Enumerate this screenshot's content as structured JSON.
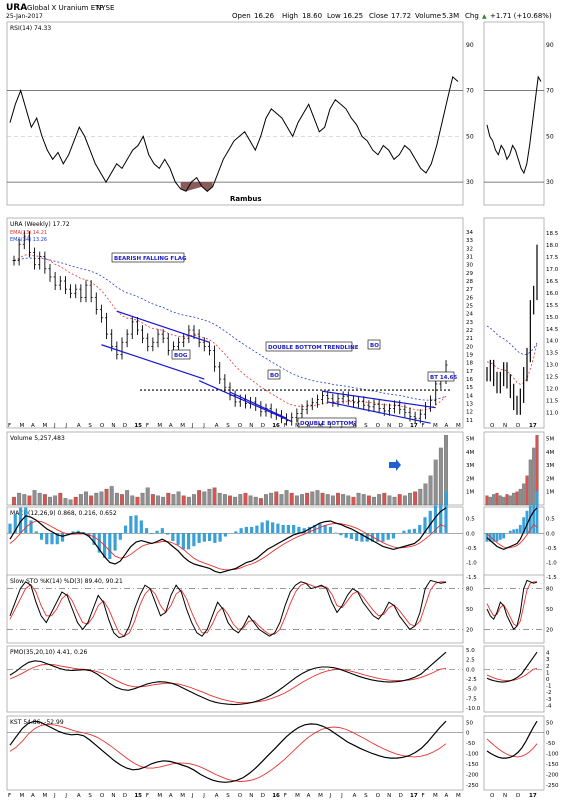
{
  "header": {
    "symbol": "URA",
    "name": "Global X Uranium ETF",
    "exchange": "NYSE",
    "date": "25-Jan-2017",
    "open_label": "Open",
    "open": "16.26",
    "high_label": "High",
    "high": "18.60",
    "low_label": "Low",
    "low": "16.25",
    "close_label": "Close",
    "close": "17.72",
    "volume_label": "Volume",
    "volume": "5.3M",
    "chg_label": "Chg",
    "chg": "+1.71 (+10.68%)",
    "chg_arrow": "▲"
  },
  "colors": {
    "price_bars": "#000000",
    "ema13": "#e8322e",
    "ema34": "#1f3fd0",
    "trendline": "#1515d8",
    "rsi_fill": "#8b5a5a",
    "vol_up": "#8f8f8f",
    "vol_down": "#d9534f",
    "macd_hist": "#3aa0d8",
    "signal": "#e8322e",
    "grid": "#b8b8b8"
  },
  "chart_data": [
    {
      "type": "line",
      "panel": "rsi",
      "title": "RSI(14) 74.33",
      "indicator": "RSI(14)",
      "last_value": 74.33,
      "watermark": "Rambus",
      "y_ticks": [
        30,
        50,
        70,
        90
      ],
      "ylim": [
        20,
        100
      ],
      "reference_lines": [
        30,
        70
      ],
      "series": [
        {
          "name": "RSI(14)",
          "values": [
            56,
            64,
            70,
            62,
            54,
            58,
            50,
            44,
            40,
            43,
            38,
            42,
            48,
            54,
            50,
            44,
            38,
            34,
            30,
            34,
            38,
            36,
            40,
            44,
            46,
            50,
            42,
            38,
            36,
            40,
            36,
            30,
            27,
            26,
            30,
            32,
            28,
            26,
            28,
            34,
            40,
            44,
            48,
            50,
            52,
            48,
            44,
            50,
            58,
            62,
            60,
            58,
            54,
            50,
            56,
            60,
            64,
            58,
            52,
            54,
            62,
            66,
            64,
            62,
            58,
            55,
            50,
            48,
            44,
            42,
            46,
            44,
            40,
            42,
            46,
            44,
            40,
            36,
            34,
            38,
            46,
            56,
            66,
            76,
            74
          ]
        }
      ]
    },
    {
      "type": "candlestick",
      "panel": "price",
      "title": "URA (Weekly) 17.72",
      "y_ticks": [
        11,
        12,
        13,
        14,
        15,
        16,
        17,
        18,
        19,
        20,
        21,
        22,
        23,
        24,
        25,
        26,
        27,
        28,
        29,
        30,
        31,
        32,
        33,
        34
      ],
      "ylim": [
        10.5,
        34
      ],
      "x_ticks": [
        "F",
        "M",
        "A",
        "M",
        "J",
        "J",
        "A",
        "S",
        "O",
        "N",
        "D",
        "15",
        "F",
        "M",
        "A",
        "M",
        "J",
        "J",
        "A",
        "S",
        "O",
        "N",
        "D",
        "16",
        "F",
        "M",
        "A",
        "M",
        "J",
        "J",
        "A",
        "S",
        "O",
        "N",
        "D",
        "17",
        "F",
        "M",
        "A",
        "M"
      ],
      "close": [
        30.5,
        32.5,
        33.5,
        31.5,
        30,
        31,
        29.5,
        28.5,
        27.5,
        28,
        27,
        26.5,
        27,
        26,
        27.5,
        26,
        24.5,
        23.5,
        21.5,
        20,
        19,
        20.5,
        21.5,
        23,
        22,
        21,
        20,
        20.5,
        21.5,
        21,
        19.5,
        20,
        20.5,
        21,
        22,
        21.5,
        20.5,
        20,
        19.5,
        17.5,
        16,
        15,
        14,
        13.2,
        13.5,
        13,
        13.2,
        12.7,
        12,
        12.4,
        11.8,
        11.6,
        11.2,
        10.9,
        11.3,
        11.8,
        12.3,
        12.8,
        13.1,
        13.5,
        14,
        13.6,
        13.2,
        13.6,
        13.9,
        13.4,
        13.1,
        13.3,
        12.8,
        12.6,
        12.9,
        12.4,
        12.1,
        12.4,
        12.8,
        12.3,
        11.9,
        11.4,
        11.2,
        11.7,
        12.6,
        13.4,
        15.4,
        16.0,
        17.72
      ],
      "series": [
        {
          "name": "EMA(13) 14.21",
          "last_value": 14.21
        },
        {
          "name": "EMA(34) 13.26",
          "last_value": 13.26
        }
      ],
      "annotations": [
        "BEARISH FALLING FLAG",
        "BOG",
        "DOUBLE BOTTOM TRENDLINE",
        "BO",
        "BO",
        "BT 14.65",
        "DOUBLE BOTTOM?"
      ]
    },
    {
      "type": "bar",
      "panel": "volume",
      "title": "Volume 5,257,483",
      "y_ticks": [
        "1M",
        "2M",
        "3M",
        "4M",
        "5M"
      ],
      "ylim": [
        0,
        5.5
      ],
      "values": [
        0.6,
        0.9,
        0.8,
        0.7,
        1.1,
        0.9,
        0.8,
        0.6,
        0.7,
        0.9,
        0.5,
        0.4,
        0.6,
        0.8,
        1.0,
        0.7,
        0.9,
        1.0,
        1.2,
        1.4,
        0.9,
        0.8,
        1.1,
        0.7,
        0.6,
        0.9,
        1.3,
        0.8,
        0.7,
        0.6,
        0.9,
        0.8,
        1.0,
        0.7,
        0.6,
        0.8,
        1.1,
        1.0,
        1.2,
        1.3,
        0.9,
        0.8,
        0.7,
        0.6,
        0.8,
        0.9,
        0.7,
        0.6,
        0.5,
        0.8,
        0.9,
        1.0,
        0.8,
        1.1,
        0.9,
        0.7,
        0.8,
        0.9,
        1.0,
        1.1,
        0.9,
        0.8,
        0.7,
        0.9,
        0.8,
        0.7,
        0.6,
        0.9,
        0.8,
        0.7,
        0.6,
        0.8,
        0.9,
        0.7,
        0.6,
        0.8,
        0.7,
        0.9,
        1.0,
        1.2,
        1.6,
        2.2,
        3.4,
        4.3,
        5.26
      ]
    },
    {
      "type": "line",
      "panel": "macd",
      "title": "MACD(12,26,9) 0.868, 0.216, 0.652",
      "y_ticks": [
        -1.5,
        -1.0,
        -0.5,
        0.0,
        0.5
      ],
      "ylim": [
        -1.7,
        0.9
      ],
      "macd_values": [
        -0.2,
        0.1,
        0.4,
        0.6,
        0.55,
        0.45,
        0.3,
        0.15,
        0.05,
        -0.05,
        -0.1,
        -0.05,
        0.0,
        0.02,
        0.0,
        -0.1,
        -0.3,
        -0.55,
        -0.8,
        -1.0,
        -1.05,
        -0.95,
        -0.7,
        -0.45,
        -0.3,
        -0.25,
        -0.3,
        -0.35,
        -0.28,
        -0.2,
        -0.3,
        -0.45,
        -0.6,
        -0.8,
        -0.95,
        -1.05,
        -1.1,
        -1.15,
        -1.2,
        -1.3,
        -1.35,
        -1.3,
        -1.25,
        -1.2,
        -1.1,
        -1.0,
        -0.95,
        -0.85,
        -0.7,
        -0.55,
        -0.45,
        -0.35,
        -0.25,
        -0.15,
        -0.05,
        0.0,
        0.05,
        0.15,
        0.25,
        0.35,
        0.4,
        0.42,
        0.35,
        0.3,
        0.22,
        0.15,
        0.05,
        -0.05,
        -0.15,
        -0.25,
        -0.35,
        -0.45,
        -0.5,
        -0.55,
        -0.5,
        -0.45,
        -0.4,
        -0.35,
        -0.2,
        0.05,
        0.3,
        0.55,
        0.75,
        0.868
      ],
      "signal_values": [
        -0.35,
        -0.2,
        0.0,
        0.2,
        0.35,
        0.42,
        0.4,
        0.32,
        0.22,
        0.12,
        0.03,
        -0.02,
        -0.03,
        -0.02,
        -0.02,
        -0.05,
        -0.12,
        -0.25,
        -0.42,
        -0.6,
        -0.78,
        -0.85,
        -0.82,
        -0.72,
        -0.58,
        -0.45,
        -0.38,
        -0.34,
        -0.32,
        -0.28,
        -0.28,
        -0.33,
        -0.42,
        -0.55,
        -0.7,
        -0.85,
        -0.95,
        -1.02,
        -1.08,
        -1.15,
        -1.22,
        -1.25,
        -1.25,
        -1.23,
        -1.18,
        -1.1,
        -1.05,
        -0.97,
        -0.87,
        -0.75,
        -0.62,
        -0.5,
        -0.38,
        -0.28,
        -0.18,
        -0.1,
        -0.03,
        0.05,
        0.12,
        0.2,
        0.27,
        0.32,
        0.34,
        0.33,
        0.29,
        0.24,
        0.17,
        0.08,
        -0.02,
        -0.12,
        -0.22,
        -0.32,
        -0.4,
        -0.47,
        -0.5,
        -0.49,
        -0.46,
        -0.42,
        -0.33,
        -0.2,
        -0.05,
        0.12,
        0.3,
        0.216
      ]
    },
    {
      "type": "line",
      "panel": "stochastic",
      "title": "Slow STO %K(14) %D(3) 89.40, 90.21",
      "y_ticks": [
        20,
        50,
        80
      ],
      "ylim": [
        0,
        100
      ],
      "k_values": [
        40,
        60,
        80,
        90,
        85,
        60,
        40,
        30,
        45,
        60,
        75,
        70,
        50,
        30,
        20,
        30,
        50,
        70,
        60,
        35,
        15,
        8,
        10,
        25,
        50,
        70,
        85,
        80,
        60,
        40,
        45,
        70,
        85,
        75,
        50,
        30,
        15,
        10,
        20,
        40,
        60,
        50,
        30,
        20,
        15,
        25,
        40,
        30,
        20,
        15,
        10,
        15,
        30,
        55,
        75,
        85,
        90,
        88,
        80,
        82,
        85,
        80,
        60,
        45,
        55,
        70,
        80,
        75,
        60,
        50,
        40,
        35,
        45,
        60,
        55,
        40,
        30,
        20,
        25,
        45,
        80,
        92,
        90,
        88,
        89.4
      ],
      "d_values": [
        35,
        50,
        65,
        80,
        86,
        75,
        55,
        40,
        40,
        50,
        65,
        72,
        62,
        45,
        30,
        28,
        38,
        55,
        62,
        50,
        32,
        15,
        10,
        15,
        32,
        55,
        72,
        80,
        72,
        55,
        45,
        55,
        72,
        78,
        65,
        45,
        28,
        15,
        15,
        28,
        45,
        52,
        42,
        28,
        20,
        22,
        32,
        33,
        25,
        18,
        13,
        13,
        20,
        38,
        58,
        75,
        85,
        88,
        85,
        82,
        83,
        82,
        72,
        55,
        52,
        62,
        72,
        76,
        68,
        58,
        48,
        40,
        42,
        52,
        56,
        48,
        38,
        28,
        25,
        32,
        55,
        78,
        88,
        90,
        90.21
      ]
    },
    {
      "type": "line",
      "panel": "pmo",
      "title": "PMO(35,20,10) 4.41, 0.26",
      "y_ticks": [
        -10.0,
        -7.5,
        -5.0,
        -2.5,
        0.0,
        2.5,
        5.0
      ],
      "ylim": [
        -11,
        6
      ],
      "pmo_values": [
        -1.5,
        -0.5,
        0.8,
        1.8,
        2.2,
        2.0,
        1.4,
        0.8,
        0.2,
        -0.2,
        -0.3,
        -0.2,
        -0.1,
        -0.4,
        -1.2,
        -2.4,
        -3.6,
        -4.6,
        -5.2,
        -5.4,
        -5.0,
        -4.4,
        -3.8,
        -3.4,
        -3.2,
        -3.3,
        -3.6,
        -4.2,
        -5.0,
        -5.8,
        -6.6,
        -7.3,
        -8.0,
        -8.5,
        -8.8,
        -9.0,
        -9.1,
        -9.0,
        -8.8,
        -8.5,
        -8.0,
        -7.4,
        -6.6,
        -5.6,
        -4.4,
        -3.2,
        -2.0,
        -1.0,
        -0.2,
        0.3,
        0.6,
        0.6,
        0.4,
        0.0,
        -0.6,
        -1.2,
        -1.8,
        -2.3,
        -2.7,
        -3.0,
        -3.2,
        -3.3,
        -3.2,
        -3.0,
        -2.6,
        -2.0,
        -1.2,
        0.2,
        1.6,
        3.0,
        4.41
      ],
      "signal_values": [
        -2.5,
        -1.8,
        -1.0,
        -0.1,
        0.6,
        1.1,
        1.3,
        1.2,
        0.9,
        0.6,
        0.3,
        0.1,
        0.0,
        -0.2,
        -0.6,
        -1.2,
        -2.0,
        -2.8,
        -3.6,
        -4.2,
        -4.5,
        -4.5,
        -4.3,
        -4.0,
        -3.8,
        -3.6,
        -3.6,
        -3.8,
        -4.2,
        -4.7,
        -5.3,
        -5.9,
        -6.6,
        -7.2,
        -7.7,
        -8.1,
        -8.4,
        -8.6,
        -8.6,
        -8.5,
        -8.3,
        -8.0,
        -7.5,
        -6.9,
        -6.2,
        -5.3,
        -4.3,
        -3.3,
        -2.4,
        -1.6,
        -0.9,
        -0.4,
        -0.1,
        0.0,
        -0.2,
        -0.6,
        -1.0,
        -1.5,
        -1.9,
        -2.3,
        -2.6,
        -2.8,
        -2.9,
        -2.9,
        -2.8,
        -2.5,
        -2.1,
        -1.5,
        -0.8,
        0.0,
        0.26
      ]
    },
    {
      "type": "line",
      "panel": "kst",
      "title": "KST 54.86, -52.99",
      "y_ticks": [
        -250,
        -200,
        -150,
        -100,
        -50,
        0,
        50
      ],
      "ylim": [
        -275,
        80
      ],
      "kst_values": [
        -60,
        -20,
        20,
        45,
        55,
        50,
        35,
        20,
        5,
        -5,
        -10,
        -8,
        -15,
        -35,
        -60,
        -85,
        -110,
        -135,
        -155,
        -170,
        -178,
        -175,
        -165,
        -150,
        -140,
        -135,
        -138,
        -145,
        -155,
        -165,
        -180,
        -200,
        -215,
        -228,
        -235,
        -238,
        -235,
        -228,
        -215,
        -195,
        -170,
        -140,
        -110,
        -80,
        -50,
        -20,
        5,
        25,
        38,
        42,
        40,
        30,
        15,
        -5,
        -25,
        -45,
        -60,
        -75,
        -88,
        -100,
        -110,
        -118,
        -122,
        -122,
        -118,
        -110,
        -95,
        -75,
        -45,
        -10,
        25,
        54.86
      ],
      "signal_values": [
        -90,
        -70,
        -40,
        -5,
        20,
        35,
        40,
        38,
        32,
        22,
        12,
        4,
        -2,
        -10,
        -22,
        -40,
        -60,
        -82,
        -105,
        -128,
        -148,
        -162,
        -170,
        -170,
        -165,
        -158,
        -150,
        -146,
        -146,
        -150,
        -158,
        -170,
        -185,
        -200,
        -213,
        -224,
        -231,
        -234,
        -232,
        -226,
        -215,
        -198,
        -178,
        -155,
        -130,
        -102,
        -73,
        -45,
        -20,
        0,
        15,
        24,
        27,
        24,
        15,
        2,
        -14,
        -30,
        -47,
        -63,
        -78,
        -91,
        -102,
        -110,
        -115,
        -116,
        -113,
        -105,
        -92,
        -75,
        -52.99
      ]
    }
  ],
  "annotation_labels": {
    "flag": "BEARISH FALLING FLAG",
    "bog": "BOG",
    "dbt": "DOUBLE BOTTOM TRENDLINE",
    "bo1": "BO",
    "bo2": "BO",
    "bt": "BT 14.65",
    "dbq": "DOUBLE BOTTOM?"
  }
}
